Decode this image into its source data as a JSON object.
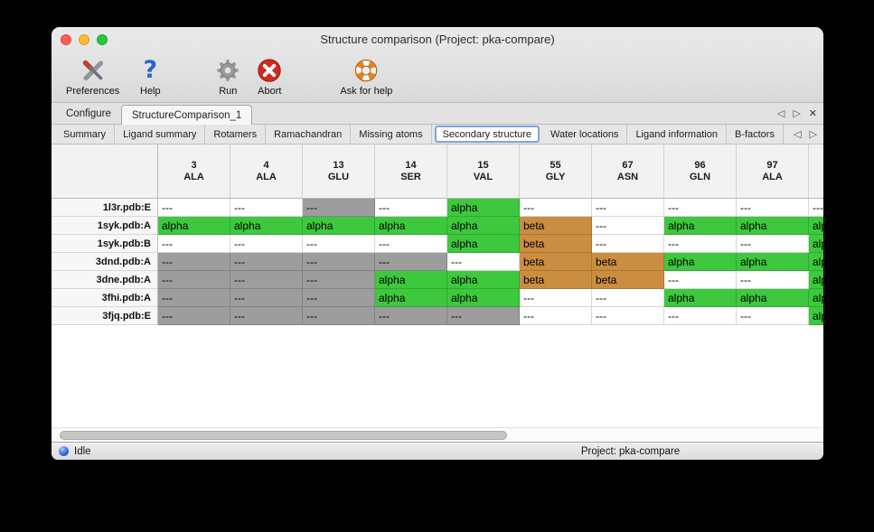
{
  "window": {
    "title": "Structure comparison (Project: pka-compare)"
  },
  "toolbar": {
    "items": [
      {
        "label": "Preferences",
        "icon": "crossed-tools-icon"
      },
      {
        "label": "Help",
        "icon": "question-mark-icon"
      },
      {
        "label": "Run",
        "icon": "gear-icon"
      },
      {
        "label": "Abort",
        "icon": "red-x-icon"
      },
      {
        "label": "Ask for help",
        "icon": "lifebuoy-icon"
      }
    ]
  },
  "document_tabs": {
    "tabs": [
      {
        "label": "Configure",
        "selected": false
      },
      {
        "label": "StructureComparison_1",
        "selected": true
      }
    ],
    "controls": {
      "prev": "◁",
      "next": "▷",
      "close": "✕"
    }
  },
  "view_tabs": {
    "tabs": [
      {
        "label": "Summary",
        "selected": false
      },
      {
        "label": "Ligand summary",
        "selected": false
      },
      {
        "label": "Rotamers",
        "selected": false
      },
      {
        "label": "Ramachandran",
        "selected": false
      },
      {
        "label": "Missing atoms",
        "selected": false
      },
      {
        "label": "Secondary structure",
        "selected": true
      },
      {
        "label": "Water locations",
        "selected": false
      },
      {
        "label": "Ligand information",
        "selected": false
      },
      {
        "label": "B-factors",
        "selected": false
      }
    ],
    "controls": {
      "prev": "◁",
      "next": "▷"
    }
  },
  "cell_colors": {
    "green": "#3dc83d",
    "orange": "#cb8d3f",
    "gray": "#9d9d9d",
    "white": "#ffffff"
  },
  "colors": {
    "selected_tab_border": "#7ca7de"
  },
  "table": {
    "columns": [
      {
        "num": "3",
        "res": "ALA"
      },
      {
        "num": "4",
        "res": "ALA"
      },
      {
        "num": "13",
        "res": "GLU"
      },
      {
        "num": "14",
        "res": "SER"
      },
      {
        "num": "15",
        "res": "VAL"
      },
      {
        "num": "55",
        "res": "GLY"
      },
      {
        "num": "67",
        "res": "ASN"
      },
      {
        "num": "96",
        "res": "GLN"
      },
      {
        "num": "97",
        "res": "ALA"
      }
    ],
    "rows": [
      {
        "header": "1l3r.pdb:E",
        "cells": [
          {
            "text": "---",
            "bg": "white"
          },
          {
            "text": "---",
            "bg": "white"
          },
          {
            "text": "---",
            "bg": "gray"
          },
          {
            "text": "---",
            "bg": "white"
          },
          {
            "text": "alpha",
            "bg": "green"
          },
          {
            "text": "---",
            "bg": "white"
          },
          {
            "text": "---",
            "bg": "white"
          },
          {
            "text": "---",
            "bg": "white"
          },
          {
            "text": "---",
            "bg": "white"
          }
        ],
        "partial": {
          "text": "---",
          "bg": "white"
        }
      },
      {
        "header": "1syk.pdb:A",
        "cells": [
          {
            "text": "alpha",
            "bg": "green"
          },
          {
            "text": "alpha",
            "bg": "green"
          },
          {
            "text": "alpha",
            "bg": "green"
          },
          {
            "text": "alpha",
            "bg": "green"
          },
          {
            "text": "alpha",
            "bg": "green"
          },
          {
            "text": "beta",
            "bg": "orange"
          },
          {
            "text": "---",
            "bg": "white"
          },
          {
            "text": "alpha",
            "bg": "green"
          },
          {
            "text": "alpha",
            "bg": "green"
          }
        ],
        "partial": {
          "text": "alpha",
          "bg": "green"
        }
      },
      {
        "header": "1syk.pdb:B",
        "cells": [
          {
            "text": "---",
            "bg": "white"
          },
          {
            "text": "---",
            "bg": "white"
          },
          {
            "text": "---",
            "bg": "white"
          },
          {
            "text": "---",
            "bg": "white"
          },
          {
            "text": "alpha",
            "bg": "green"
          },
          {
            "text": "beta",
            "bg": "orange"
          },
          {
            "text": "---",
            "bg": "white"
          },
          {
            "text": "---",
            "bg": "white"
          },
          {
            "text": "---",
            "bg": "white"
          }
        ],
        "partial": {
          "text": "alpha",
          "bg": "green"
        }
      },
      {
        "header": "3dnd.pdb:A",
        "cells": [
          {
            "text": "---",
            "bg": "gray"
          },
          {
            "text": "---",
            "bg": "gray"
          },
          {
            "text": "---",
            "bg": "gray"
          },
          {
            "text": "---",
            "bg": "gray"
          },
          {
            "text": "---",
            "bg": "white"
          },
          {
            "text": "beta",
            "bg": "orange"
          },
          {
            "text": "beta",
            "bg": "orange"
          },
          {
            "text": "alpha",
            "bg": "green"
          },
          {
            "text": "alpha",
            "bg": "green"
          }
        ],
        "partial": {
          "text": "alpha",
          "bg": "green"
        }
      },
      {
        "header": "3dne.pdb:A",
        "cells": [
          {
            "text": "---",
            "bg": "gray"
          },
          {
            "text": "---",
            "bg": "gray"
          },
          {
            "text": "---",
            "bg": "gray"
          },
          {
            "text": "alpha",
            "bg": "green"
          },
          {
            "text": "alpha",
            "bg": "green"
          },
          {
            "text": "beta",
            "bg": "orange"
          },
          {
            "text": "beta",
            "bg": "orange"
          },
          {
            "text": "---",
            "bg": "white"
          },
          {
            "text": "---",
            "bg": "white"
          }
        ],
        "partial": {
          "text": "alpha",
          "bg": "green"
        }
      },
      {
        "header": "3fhi.pdb:A",
        "cells": [
          {
            "text": "---",
            "bg": "gray"
          },
          {
            "text": "---",
            "bg": "gray"
          },
          {
            "text": "---",
            "bg": "gray"
          },
          {
            "text": "alpha",
            "bg": "green"
          },
          {
            "text": "alpha",
            "bg": "green"
          },
          {
            "text": "---",
            "bg": "white"
          },
          {
            "text": "---",
            "bg": "white"
          },
          {
            "text": "alpha",
            "bg": "green"
          },
          {
            "text": "alpha",
            "bg": "green"
          }
        ],
        "partial": {
          "text": "alpha",
          "bg": "green"
        }
      },
      {
        "header": "3fjq.pdb:E",
        "cells": [
          {
            "text": "---",
            "bg": "gray"
          },
          {
            "text": "---",
            "bg": "gray"
          },
          {
            "text": "---",
            "bg": "gray"
          },
          {
            "text": "---",
            "bg": "gray"
          },
          {
            "text": "---",
            "bg": "gray"
          },
          {
            "text": "---",
            "bg": "white"
          },
          {
            "text": "---",
            "bg": "white"
          },
          {
            "text": "---",
            "bg": "white"
          },
          {
            "text": "---",
            "bg": "white"
          }
        ],
        "partial": {
          "text": "alpha",
          "bg": "green"
        }
      }
    ]
  },
  "scrollbar": {
    "thumb_start_pct": 1,
    "thumb_width_pct": 58
  },
  "statusbar": {
    "status": "Idle",
    "project": "Project: pka-compare"
  }
}
